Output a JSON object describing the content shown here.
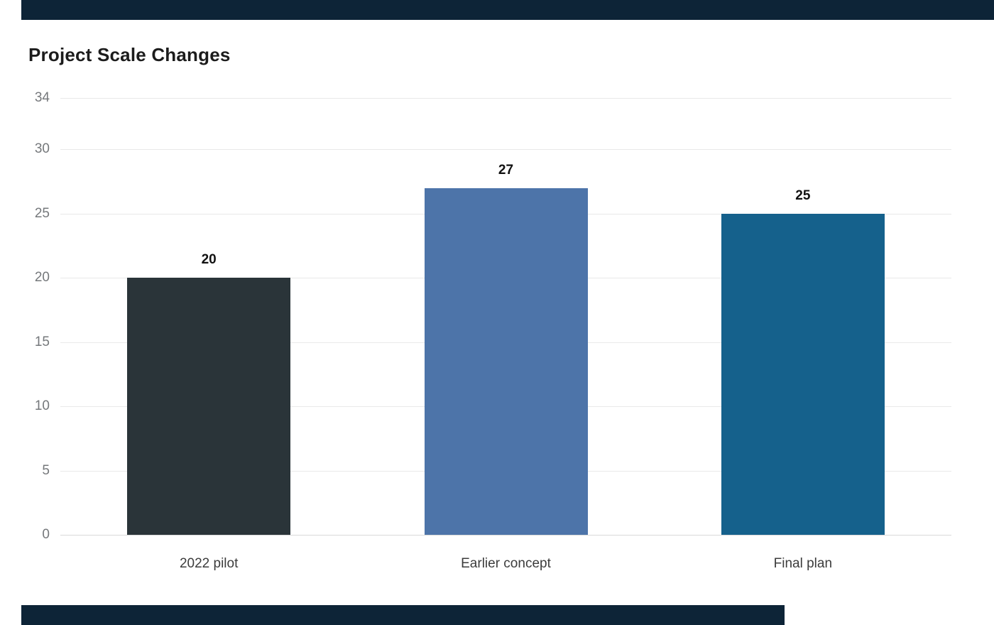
{
  "page": {
    "accent_bar_color": "#0d2437",
    "background_color": "#ffffff"
  },
  "chart_data": {
    "type": "bar",
    "title": "Project Scale Changes",
    "categories": [
      "2022 pilot",
      "Earlier concept",
      "Final plan"
    ],
    "values": [
      20,
      27,
      25
    ],
    "value_labels": [
      "20",
      "27",
      "25"
    ],
    "bar_colors": [
      "#2a3439",
      "#4d74a9",
      "#15618c"
    ],
    "xlabel": "",
    "ylabel": "",
    "ylim": [
      0,
      34
    ],
    "yticks": [
      0,
      5,
      10,
      15,
      20,
      25,
      30,
      34
    ],
    "grid": "horizontal",
    "legend_position": "none",
    "title_color": "#1c1c1c",
    "tick_label_color": "#75787b",
    "category_label_color": "#3c3c3c",
    "gridline_color": "#e9e9e9"
  }
}
